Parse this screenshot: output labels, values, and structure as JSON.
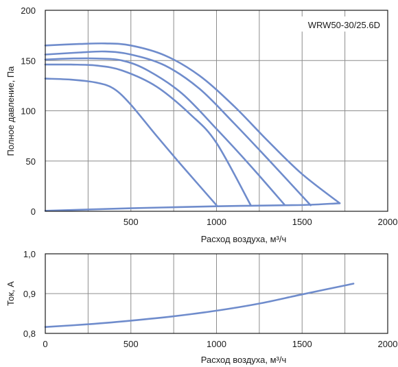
{
  "chart_data": [
    {
      "type": "line",
      "annotation": "WRW50-30/25.6D",
      "xlabel": "Расход воздуха, м³/ч",
      "ylabel": "Полное давление, Па",
      "xlim": [
        0,
        2000
      ],
      "ylim": [
        0,
        200
      ],
      "xticks": [
        0,
        500,
        1000,
        1500,
        2000
      ],
      "yticks": [
        0,
        50,
        100,
        150,
        200
      ],
      "xtick_labels": [
        "",
        "500",
        "1000",
        "1500",
        "2000"
      ],
      "ytick_labels": [
        "0",
        "50",
        "100",
        "150",
        "200"
      ],
      "grid": true,
      "color": "#6f8ccc",
      "series": [
        {
          "x": [
            0,
            200,
            350,
            500,
            700,
            900,
            1100,
            1300,
            1500,
            1720
          ],
          "y": [
            165,
            166.5,
            167,
            165,
            155,
            135,
            105,
            70,
            37,
            8
          ]
        },
        {
          "x": [
            0,
            200,
            350,
            500,
            700,
            900,
            1100,
            1300,
            1550
          ],
          "y": [
            156,
            158,
            159,
            156,
            145,
            122,
            88,
            52,
            6
          ]
        },
        {
          "x": [
            0,
            150,
            300,
            450,
            600,
            800,
            1000,
            1200,
            1400
          ],
          "y": [
            151,
            152,
            152,
            150,
            140,
            117,
            82,
            45,
            6
          ]
        },
        {
          "x": [
            0,
            150,
            300,
            450,
            650,
            850,
            1000,
            1200
          ],
          "y": [
            146,
            146,
            145,
            140,
            124,
            96,
            68,
            6
          ]
        },
        {
          "x": [
            0,
            150,
            300,
            400,
            500,
            650,
            800,
            1000
          ],
          "y": [
            132,
            131,
            128,
            122,
            106,
            75,
            45,
            6
          ]
        },
        {
          "x": [
            0,
            500,
            1000,
            1200,
            1400,
            1550,
            1720
          ],
          "y": [
            0.5,
            3,
            5,
            5.5,
            6,
            6.5,
            8
          ]
        }
      ]
    },
    {
      "type": "line",
      "xlabel": "Расход воздуха, м³/ч",
      "ylabel": "Ток, А",
      "xlim": [
        0,
        2000
      ],
      "ylim": [
        0.8,
        1.0
      ],
      "xticks": [
        0,
        500,
        1000,
        1500,
        2000
      ],
      "yticks": [
        0.8,
        0.9,
        1.0
      ],
      "xtick_labels": [
        "0",
        "500",
        "1000",
        "1500",
        "2000"
      ],
      "ytick_labels": [
        "0,8",
        "0,9",
        "1,0"
      ],
      "grid": true,
      "color": "#6f8ccc",
      "series": [
        {
          "x": [
            0,
            250,
            500,
            750,
            1000,
            1250,
            1500,
            1800
          ],
          "y": [
            0.816,
            0.823,
            0.832,
            0.843,
            0.857,
            0.875,
            0.898,
            0.925
          ]
        }
      ]
    }
  ]
}
